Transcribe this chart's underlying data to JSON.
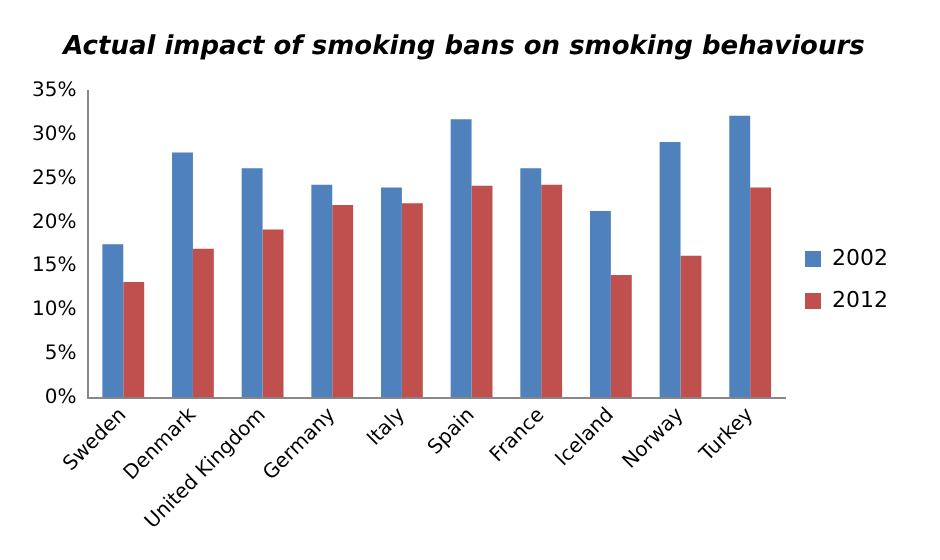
{
  "chart_data": {
    "type": "bar",
    "title": "Actual impact of smoking bans on smoking behaviours",
    "categories": [
      "Sweden",
      "Denmark",
      "United Kingdom",
      "Germany",
      "Italy",
      "Spain",
      "France",
      "Iceland",
      "Norway",
      "Turkey"
    ],
    "series": [
      {
        "name": "2002",
        "color": "#4f81bd",
        "values": [
          17.5,
          28,
          26.2,
          24.3,
          24,
          31.8,
          26.2,
          21.3,
          29.2,
          32.2
        ]
      },
      {
        "name": "2012",
        "color": "#c0504d",
        "values": [
          13.2,
          17,
          19.2,
          22,
          22.2,
          24.2,
          24.3,
          14,
          16.2,
          24
        ]
      }
    ],
    "ylim": [
      0,
      35
    ],
    "yticks": [
      {
        "value": 0,
        "label": "0%"
      },
      {
        "value": 5,
        "label": "5%"
      },
      {
        "value": 10,
        "label": "10%"
      },
      {
        "value": 15,
        "label": "15%"
      },
      {
        "value": 20,
        "label": "20%"
      },
      {
        "value": 25,
        "label": "25%"
      },
      {
        "value": 30,
        "label": "30%"
      },
      {
        "value": 35,
        "label": "35%"
      }
    ],
    "grid": false,
    "legend": "right"
  }
}
